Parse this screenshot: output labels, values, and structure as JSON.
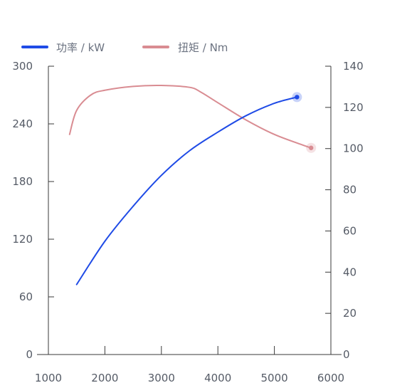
{
  "chart_data": {
    "type": "line",
    "legend": {
      "placement": "top-left",
      "items": [
        {
          "label": "功率 / kW",
          "color": "#1f4be6",
          "axis": "right"
        },
        {
          "label": "扭矩 / Nm",
          "color": "#d98c92",
          "axis": "left"
        }
      ]
    },
    "x_axis": {
      "ticks": [
        "1000",
        "2000",
        "3000",
        "4000",
        "5000",
        "6000"
      ],
      "range": [
        1000,
        6000
      ]
    },
    "y_left": {
      "ticks": [
        "0",
        "60",
        "120",
        "180",
        "240",
        "300"
      ],
      "ticks_values": [
        0,
        60,
        120,
        180,
        240,
        300
      ],
      "range": [
        0,
        300
      ]
    },
    "y_right": {
      "ticks": [
        "0",
        "20",
        "40",
        "60",
        "80",
        "100",
        "120",
        "140"
      ],
      "ticks_values": [
        0,
        20,
        40,
        60,
        80,
        100,
        120,
        140
      ],
      "range": [
        0,
        140
      ]
    },
    "series": [
      {
        "name": "功率 / kW",
        "axis": "right",
        "color": "#1f4be6",
        "x": [
          1500,
          2000,
          2500,
          3000,
          3500,
          4000,
          4500,
          5000,
          5400
        ],
        "y": [
          34,
          55,
          72,
          87,
          99,
          108,
          116,
          122,
          125
        ],
        "highlight_last": true
      },
      {
        "name": "扭矩 / Nm",
        "axis": "left",
        "color": "#d98c92",
        "x": [
          1375,
          1500,
          1750,
          2000,
          2500,
          3000,
          3500,
          3700,
          4000,
          4500,
          5000,
          5500,
          5650
        ],
        "y": [
          229,
          254,
          270,
          275,
          279,
          280,
          278,
          273,
          262,
          244,
          229,
          218,
          215
        ],
        "highlight_last": true
      }
    ]
  }
}
